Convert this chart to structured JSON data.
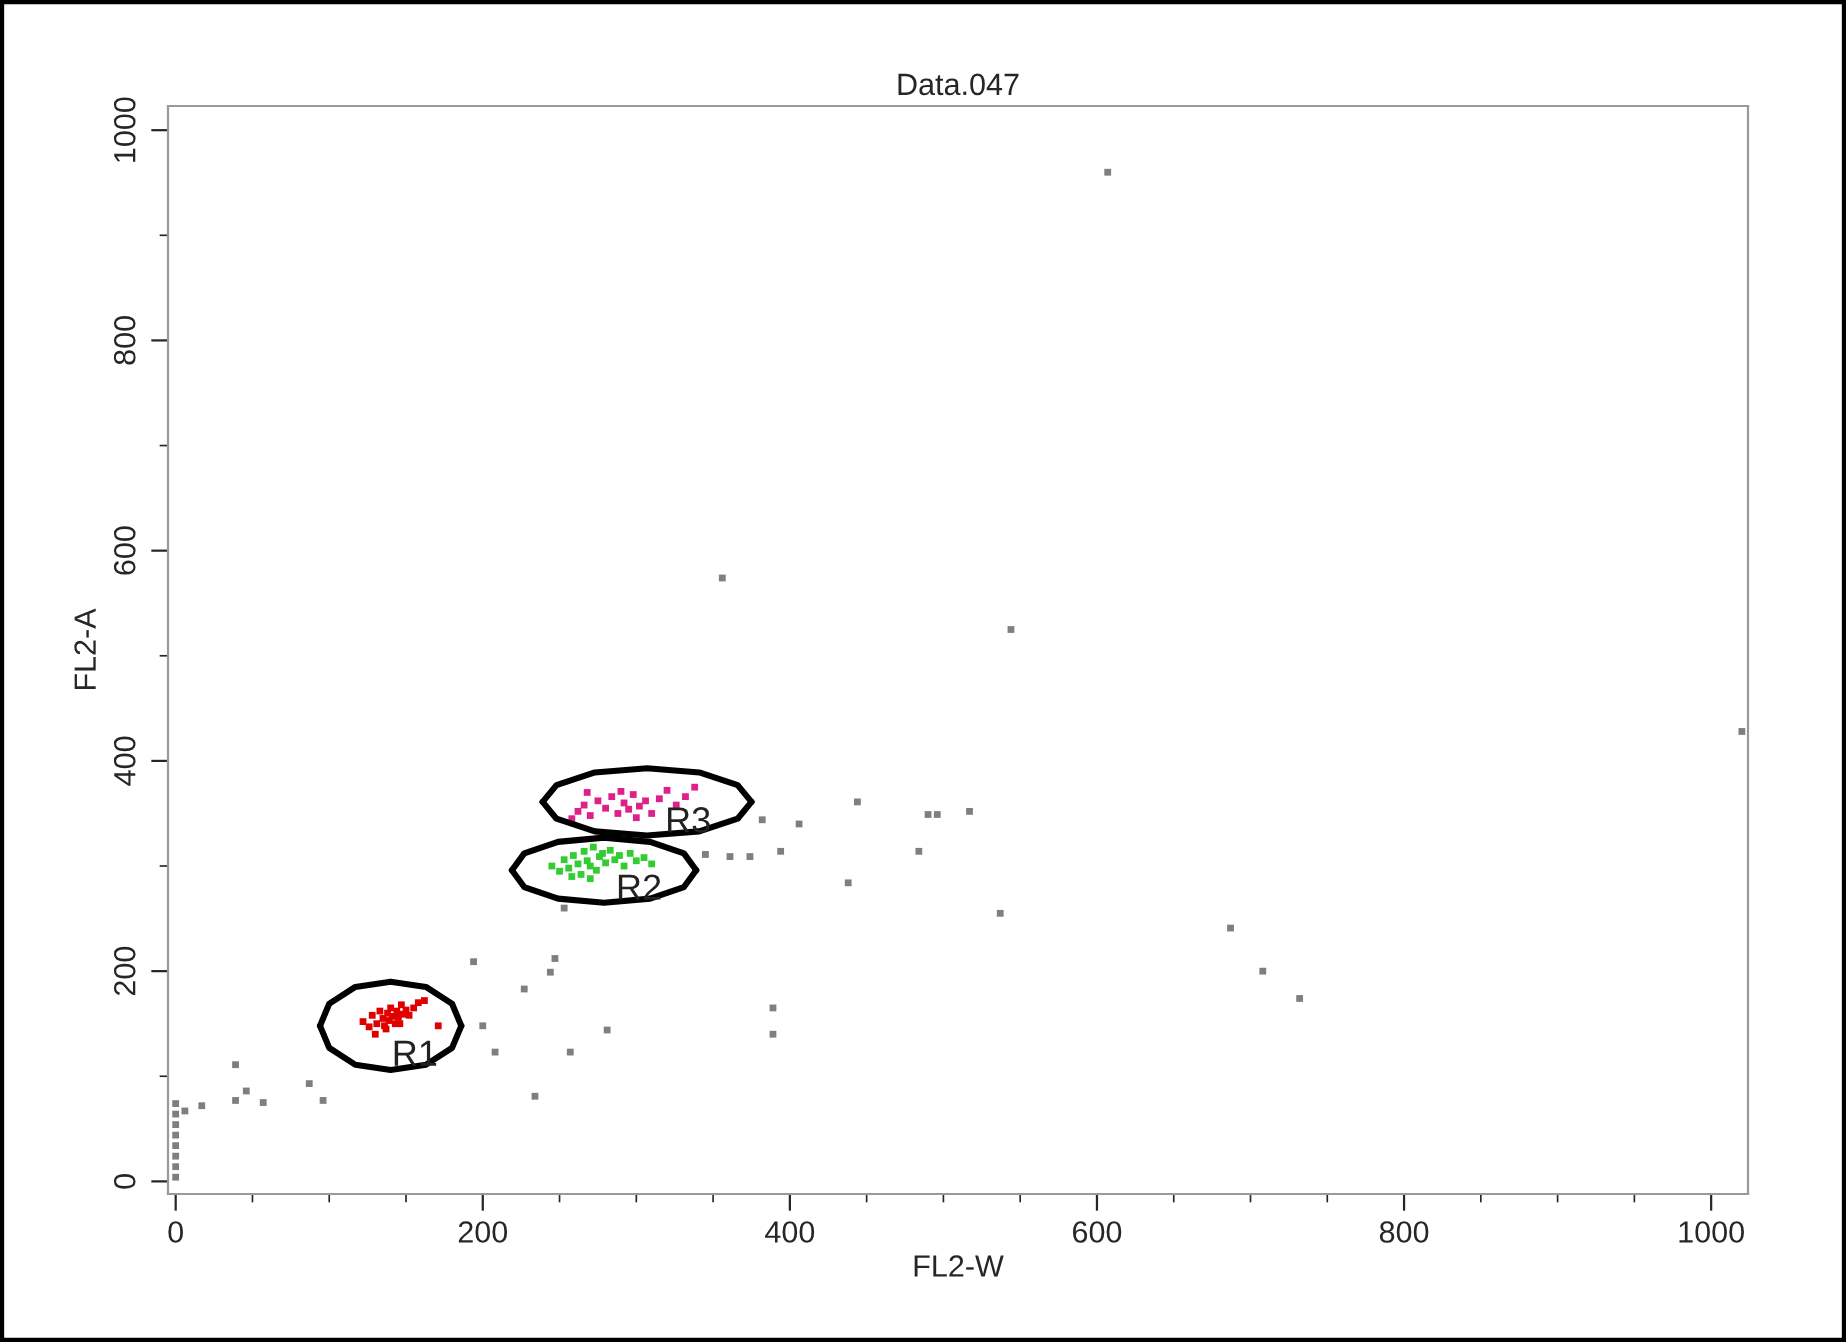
{
  "chart_data": {
    "type": "scatter",
    "title": "Data.047",
    "xlabel": "FL2-W",
    "ylabel": "FL2-A",
    "xlim": [
      -5,
      1024
    ],
    "ylim": [
      -12,
      1023
    ],
    "xticks": [
      0,
      {
        "value": 50,
        "label": null
      },
      {
        "value": 100,
        "label": null
      },
      {
        "value": 150,
        "label": null
      },
      200,
      {
        "value": 250,
        "label": null
      },
      {
        "value": 300,
        "label": null
      },
      {
        "value": 350,
        "label": null
      },
      400,
      {
        "value": 450,
        "label": null
      },
      {
        "value": 500,
        "label": null
      },
      {
        "value": 550,
        "label": null
      },
      600,
      {
        "value": 650,
        "label": null
      },
      {
        "value": 700,
        "label": null
      },
      {
        "value": 750,
        "label": null
      },
      800,
      {
        "value": 850,
        "label": null
      },
      {
        "value": 900,
        "label": null
      },
      {
        "value": 950,
        "label": null
      },
      1000
    ],
    "yticks": [
      0,
      {
        "value": 100,
        "label": null
      },
      200,
      {
        "value": 300,
        "label": null
      },
      400,
      {
        "value": 500,
        "label": null
      },
      600,
      {
        "value": 700,
        "label": null
      },
      800,
      {
        "value": 900,
        "label": null
      },
      1000
    ],
    "grid": false,
    "marker": "square",
    "series": [
      {
        "color": "#7f7f7f",
        "x": [
          607,
          356,
          544,
          1020,
          382,
          406,
          444,
          490,
          496,
          517,
          345,
          361,
          374,
          394,
          484,
          438,
          537,
          687,
          708,
          732,
          389,
          389,
          6,
          17,
          39,
          39,
          46,
          57,
          87,
          96,
          194,
          200,
          208,
          227,
          244,
          247,
          234,
          257,
          281,
          253,
          0,
          0,
          0,
          0,
          0,
          0,
          0,
          0
        ],
        "values": [
          960,
          574,
          525,
          428,
          344,
          340,
          361,
          349,
          349,
          352,
          311,
          309,
          309,
          314,
          314,
          284,
          255,
          241,
          200,
          174,
          165,
          140,
          67,
          72,
          111,
          77,
          86,
          75,
          93,
          77,
          209,
          148,
          123,
          183,
          199,
          212,
          81,
          123,
          144,
          260,
          4,
          14,
          24,
          34,
          44,
          54,
          64,
          74
        ]
      },
      {
        "color": "#e00000",
        "x": [
          122,
          126,
          128,
          131,
          133,
          135,
          136,
          138,
          139,
          140,
          141,
          143,
          144,
          145,
          147,
          148,
          150,
          152,
          155,
          158,
          162,
          130,
          137,
          146,
          171
        ],
        "values": [
          152,
          147,
          158,
          150,
          162,
          155,
          148,
          160,
          153,
          165,
          157,
          150,
          162,
          156,
          168,
          159,
          163,
          158,
          165,
          170,
          172,
          140,
          145,
          150,
          148
        ]
      },
      {
        "color": "#33cc33",
        "x": [
          245,
          250,
          253,
          256,
          259,
          262,
          264,
          266,
          268,
          270,
          272,
          274,
          276,
          278,
          280,
          283,
          286,
          289,
          292,
          296,
          300,
          305,
          310,
          258,
          270
        ],
        "values": [
          300,
          295,
          306,
          298,
          310,
          302,
          292,
          314,
          305,
          300,
          318,
          296,
          309,
          312,
          303,
          315,
          306,
          310,
          300,
          312,
          305,
          308,
          302,
          290,
          288
        ]
      },
      {
        "color": "#e0208a",
        "x": [
          258,
          262,
          266,
          270,
          275,
          280,
          284,
          288,
          292,
          295,
          298,
          302,
          306,
          310,
          315,
          320,
          326,
          332,
          338,
          268,
          300,
          290
        ],
        "values": [
          345,
          352,
          358,
          348,
          362,
          355,
          366,
          350,
          360,
          354,
          368,
          357,
          362,
          350,
          364,
          372,
          358,
          366,
          375,
          370,
          346,
          371
        ]
      },
      {
        "type": "line",
        "color": "#000000",
        "marker": "none",
        "x": [
          94,
          100,
          117,
          140,
          163,
          180,
          186
        ],
        "values": [
          148,
          169,
          185,
          190,
          185,
          169,
          148
        ]
      },
      {
        "type": "line",
        "color": "#000000",
        "marker": "none",
        "x": [
          94,
          100,
          117,
          140,
          163,
          180,
          186
        ],
        "values": [
          148,
          127,
          111,
          106,
          111,
          127,
          148
        ]
      },
      {
        "type": "line",
        "color": "#000000",
        "marker": "none",
        "x": [
          219,
          227,
          249,
          279,
          309,
          331,
          339
        ],
        "values": [
          296,
          312,
          323,
          327,
          323,
          312,
          296
        ]
      },
      {
        "type": "line",
        "color": "#000000",
        "marker": "none",
        "x": [
          219,
          227,
          249,
          279,
          309,
          331,
          339
        ],
        "values": [
          296,
          280,
          269,
          265,
          269,
          280,
          296
        ]
      },
      {
        "type": "line",
        "color": "#000000",
        "marker": "none",
        "x": [
          239,
          248,
          273,
          307,
          341,
          366,
          375
        ],
        "values": [
          361,
          377,
          389,
          393,
          389,
          377,
          361
        ]
      },
      {
        "type": "line",
        "color": "#000000",
        "marker": "none",
        "x": [
          239,
          248,
          273,
          307,
          341,
          366,
          375
        ],
        "values": [
          361,
          345,
          333,
          329,
          333,
          345,
          361
        ]
      }
    ],
    "annotations": [
      {
        "text": "R1",
        "x": 163,
        "y": 111
      },
      {
        "text": "R2",
        "x": 309,
        "y": 269
      },
      {
        "text": "R3",
        "x": 341,
        "y": 333
      }
    ]
  }
}
